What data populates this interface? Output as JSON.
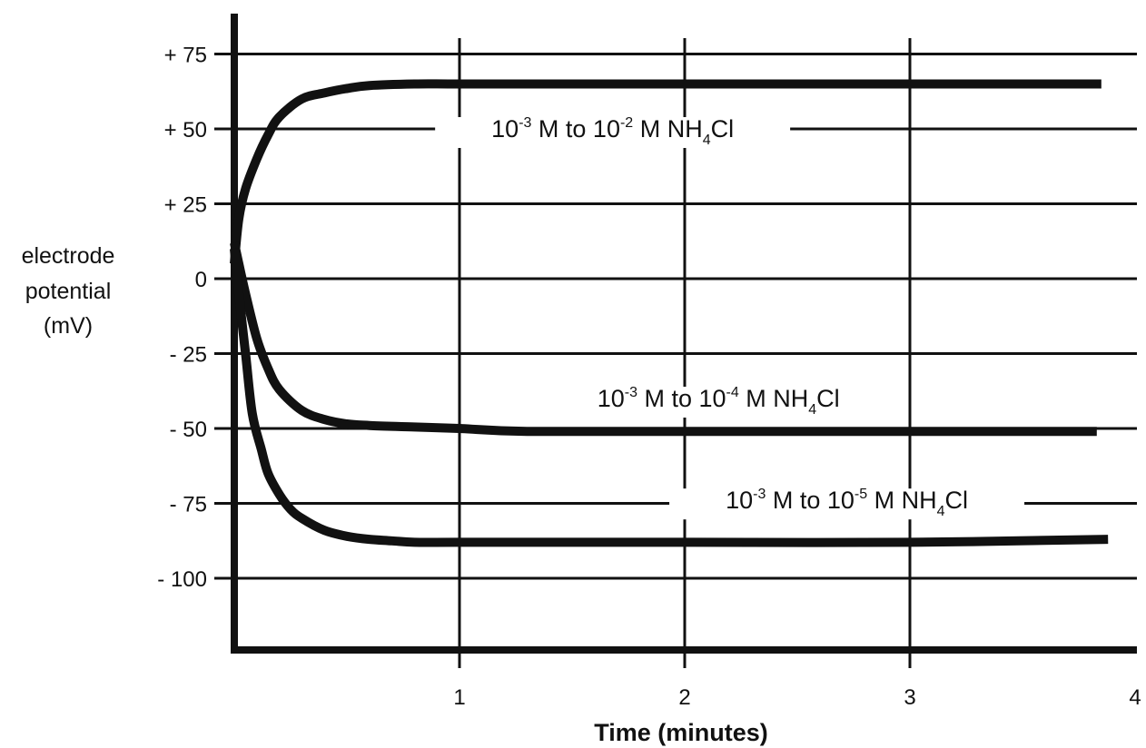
{
  "chart_data": {
    "type": "line",
    "xlabel": "Time (minutes)",
    "ylabel_lines": [
      "electrode",
      "potential",
      "(mV)"
    ],
    "xlim": [
      0,
      4
    ],
    "ylim": [
      -125,
      90
    ],
    "x_ticks": [
      {
        "value": 1,
        "label": "1"
      },
      {
        "value": 2,
        "label": "2"
      },
      {
        "value": 3,
        "label": "3"
      },
      {
        "value": 4,
        "label": "4"
      }
    ],
    "y_ticks": [
      {
        "value": 75,
        "label": "+ 75"
      },
      {
        "value": 50,
        "label": "+ 50"
      },
      {
        "value": 25,
        "label": "+ 25"
      },
      {
        "value": 0,
        "label": "0"
      },
      {
        "value": -25,
        "label": "- 25"
      },
      {
        "value": -50,
        "label": "- 50"
      },
      {
        "value": -75,
        "label": "- 75"
      },
      {
        "value": -100,
        "label": "- 100"
      }
    ],
    "grid": true,
    "series": [
      {
        "id": "to-1e-2",
        "label": {
          "a": "10",
          "b": "-3",
          "c": " M to 10",
          "d": "-2",
          "e": " M NH",
          "f": "4",
          "g": "Cl"
        },
        "label_x": 1.68,
        "label_y": 50,
        "x": [
          0.0,
          0.02,
          0.05,
          0.1,
          0.15,
          0.2,
          0.3,
          0.4,
          0.5,
          0.6,
          0.8,
          1.0,
          1.5,
          2.0,
          2.5,
          3.0,
          3.5,
          3.85
        ],
        "y": [
          5,
          20,
          30,
          40,
          48,
          54,
          60,
          62,
          63.5,
          64.5,
          65,
          65,
          65,
          65,
          65,
          65,
          65,
          65
        ]
      },
      {
        "id": "to-1e-4",
        "label": {
          "a": "10",
          "b": "-3",
          "c": " M to 10",
          "d": "-4",
          "e": " M NH",
          "f": "4",
          "g": "Cl"
        },
        "label_x": 2.15,
        "label_y": -40,
        "x": [
          0.0,
          0.02,
          0.05,
          0.1,
          0.15,
          0.2,
          0.3,
          0.4,
          0.5,
          0.6,
          0.8,
          1.0,
          1.3,
          2.0,
          3.0,
          3.83
        ],
        "y": [
          12,
          5,
          -5,
          -20,
          -30,
          -37,
          -44,
          -47,
          -48.5,
          -49,
          -49.5,
          -50,
          -51,
          -51,
          -51,
          -51
        ]
      },
      {
        "id": "to-1e-5",
        "label": {
          "a": "10",
          "b": "-3",
          "c": " M to 10",
          "d": "-5",
          "e": " M NH",
          "f": "4",
          "g": "Cl"
        },
        "label_x": 2.72,
        "label_y": -74,
        "x": [
          0.0,
          0.02,
          0.05,
          0.08,
          0.12,
          0.15,
          0.2,
          0.25,
          0.3,
          0.4,
          0.5,
          0.6,
          0.7,
          0.8,
          1.0,
          1.5,
          2.0,
          3.0,
          3.88
        ],
        "y": [
          10,
          -5,
          -25,
          -45,
          -57,
          -65,
          -72,
          -77,
          -80,
          -84,
          -86,
          -87,
          -87.5,
          -88,
          -88,
          -88,
          -88,
          -88,
          -87
        ]
      }
    ]
  }
}
